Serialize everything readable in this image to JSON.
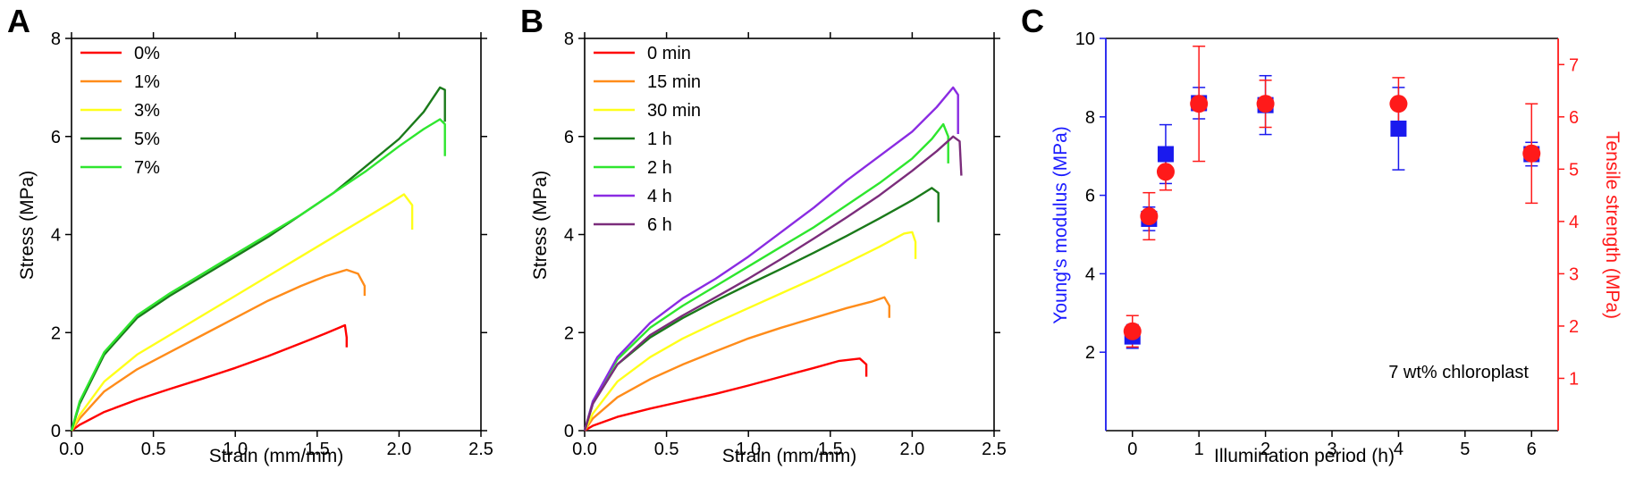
{
  "panels": [
    {
      "letter": "A",
      "chart_data": {
        "type": "line",
        "xlabel": "Strain (mm/mm)",
        "ylabel": "Stress (MPa)",
        "xlim": [
          0,
          2.5
        ],
        "ylim": [
          0,
          8
        ],
        "xticks": [
          "0.0",
          "0.5",
          "1.0",
          "1.5",
          "2.0",
          "2.5"
        ],
        "yticks": [
          "0",
          "2",
          "4",
          "6",
          "8"
        ],
        "legend_position": "top-left",
        "series": [
          {
            "name": "0%",
            "color": "#ff0000",
            "x": [
              0,
              0.05,
              0.2,
              0.4,
              0.6,
              0.8,
              1.0,
              1.2,
              1.4,
              1.55,
              1.67,
              1.68,
              1.68
            ],
            "y": [
              0,
              0.12,
              0.38,
              0.63,
              0.85,
              1.06,
              1.28,
              1.52,
              1.78,
              1.98,
              2.15,
              1.9,
              1.7
            ]
          },
          {
            "name": "1%",
            "color": "#ff8c1a",
            "x": [
              0,
              0.05,
              0.2,
              0.4,
              0.6,
              0.8,
              1.0,
              1.2,
              1.4,
              1.55,
              1.68,
              1.75,
              1.79,
              1.79
            ],
            "y": [
              0,
              0.25,
              0.8,
              1.25,
              1.6,
              1.95,
              2.3,
              2.65,
              2.95,
              3.15,
              3.28,
              3.2,
              2.95,
              2.75
            ]
          },
          {
            "name": "3%",
            "color": "#ffff1a",
            "x": [
              0,
              0.05,
              0.2,
              0.4,
              0.6,
              0.8,
              1.0,
              1.2,
              1.4,
              1.6,
              1.8,
              1.95,
              2.03,
              2.08,
              2.08
            ],
            "y": [
              0,
              0.32,
              1.0,
              1.55,
              1.95,
              2.35,
              2.75,
              3.15,
              3.55,
              3.95,
              4.35,
              4.65,
              4.82,
              4.6,
              4.1
            ]
          },
          {
            "name": "5%",
            "color": "#1a7a1a",
            "x": [
              0,
              0.05,
              0.2,
              0.4,
              0.6,
              0.8,
              1.0,
              1.2,
              1.4,
              1.6,
              1.8,
              2.0,
              2.15,
              2.25,
              2.28,
              2.28
            ],
            "y": [
              0,
              0.55,
              1.55,
              2.3,
              2.75,
              3.15,
              3.55,
              3.95,
              4.4,
              4.85,
              5.4,
              5.95,
              6.5,
              7.0,
              6.95,
              6.3
            ]
          },
          {
            "name": "7%",
            "color": "#2ee62e",
            "x": [
              0,
              0.05,
              0.2,
              0.4,
              0.6,
              0.8,
              1.0,
              1.2,
              1.4,
              1.6,
              1.8,
              2.0,
              2.15,
              2.25,
              2.28,
              2.28
            ],
            "y": [
              0,
              0.6,
              1.6,
              2.35,
              2.8,
              3.2,
              3.6,
              4.0,
              4.4,
              4.85,
              5.3,
              5.8,
              6.15,
              6.35,
              6.25,
              5.6
            ]
          }
        ]
      }
    },
    {
      "letter": "B",
      "chart_data": {
        "type": "line",
        "xlabel": "Strain (mm/mm)",
        "ylabel": "Stress (MPa)",
        "xlim": [
          0,
          2.5
        ],
        "ylim": [
          0,
          8
        ],
        "xticks": [
          "0.0",
          "0.5",
          "1.0",
          "1.5",
          "2.0",
          "2.5"
        ],
        "yticks": [
          "0",
          "2",
          "4",
          "6",
          "8"
        ],
        "legend_position": "top-left",
        "series": [
          {
            "name": "0 min",
            "color": "#ff0000",
            "x": [
              0,
              0.05,
              0.2,
              0.4,
              0.6,
              0.8,
              1.0,
              1.2,
              1.4,
              1.55,
              1.68,
              1.72,
              1.72
            ],
            "y": [
              0,
              0.1,
              0.28,
              0.45,
              0.6,
              0.75,
              0.92,
              1.1,
              1.28,
              1.42,
              1.47,
              1.35,
              1.1
            ]
          },
          {
            "name": "15 min",
            "color": "#ff8c1a",
            "x": [
              0,
              0.05,
              0.2,
              0.4,
              0.6,
              0.8,
              1.0,
              1.2,
              1.4,
              1.6,
              1.75,
              1.83,
              1.86,
              1.86
            ],
            "y": [
              0,
              0.25,
              0.68,
              1.05,
              1.35,
              1.62,
              1.88,
              2.1,
              2.3,
              2.5,
              2.63,
              2.72,
              2.55,
              2.3
            ]
          },
          {
            "name": "30 min",
            "color": "#ffff1a",
            "x": [
              0,
              0.05,
              0.2,
              0.4,
              0.6,
              0.8,
              1.0,
              1.2,
              1.4,
              1.6,
              1.8,
              1.95,
              2.0,
              2.02,
              2.02
            ],
            "y": [
              0,
              0.35,
              1.0,
              1.5,
              1.88,
              2.2,
              2.5,
              2.8,
              3.1,
              3.42,
              3.75,
              4.02,
              4.05,
              3.85,
              3.5
            ]
          },
          {
            "name": "1 h",
            "color": "#1a7a1a",
            "x": [
              0,
              0.05,
              0.2,
              0.4,
              0.6,
              0.8,
              1.0,
              1.2,
              1.4,
              1.6,
              1.8,
              2.0,
              2.12,
              2.16,
              2.16
            ],
            "y": [
              0,
              0.55,
              1.35,
              1.9,
              2.3,
              2.65,
              2.98,
              3.3,
              3.63,
              3.97,
              4.33,
              4.7,
              4.95,
              4.85,
              4.25
            ]
          },
          {
            "name": "2 h",
            "color": "#2ee62e",
            "x": [
              0,
              0.05,
              0.2,
              0.4,
              0.6,
              0.8,
              1.0,
              1.2,
              1.4,
              1.6,
              1.8,
              2.0,
              2.12,
              2.19,
              2.22,
              2.22
            ],
            "y": [
              0,
              0.6,
              1.45,
              2.1,
              2.55,
              2.95,
              3.35,
              3.75,
              4.15,
              4.6,
              5.05,
              5.55,
              5.95,
              6.25,
              6.0,
              5.45
            ]
          },
          {
            "name": "4 h",
            "color": "#8a2be2",
            "x": [
              0,
              0.05,
              0.2,
              0.4,
              0.6,
              0.8,
              1.0,
              1.2,
              1.4,
              1.6,
              1.8,
              2.0,
              2.15,
              2.25,
              2.28,
              2.28
            ],
            "y": [
              0,
              0.6,
              1.5,
              2.2,
              2.7,
              3.1,
              3.55,
              4.05,
              4.55,
              5.1,
              5.6,
              6.1,
              6.6,
              7.0,
              6.85,
              6.05
            ]
          },
          {
            "name": "6 h",
            "color": "#7b2d7b",
            "x": [
              0,
              0.05,
              0.2,
              0.4,
              0.6,
              0.8,
              1.0,
              1.2,
              1.4,
              1.6,
              1.8,
              2.0,
              2.15,
              2.25,
              2.29,
              2.3
            ],
            "y": [
              0,
              0.55,
              1.35,
              1.95,
              2.35,
              2.72,
              3.1,
              3.5,
              3.92,
              4.35,
              4.8,
              5.3,
              5.7,
              6.0,
              5.9,
              5.2
            ]
          }
        ]
      }
    },
    {
      "letter": "C",
      "chart_data": {
        "type": "scatter",
        "xlabel": "Illumination period (h)",
        "ylabel": "Young's modulus (MPa)",
        "y2label": "Tensile strength (MPa)",
        "annotation": "7 wt% chloroplast",
        "xlim": [
          -0.4,
          6.4
        ],
        "ylim": [
          0,
          10
        ],
        "y2lim": [
          0,
          7.5
        ],
        "xticks": [
          "0",
          "1",
          "2",
          "3",
          "4",
          "5",
          "6"
        ],
        "yticks": [
          "2",
          "4",
          "6",
          "8",
          "10"
        ],
        "y2ticks": [
          "1",
          "2",
          "3",
          "4",
          "5",
          "6",
          "7"
        ],
        "ylabel_color": "#1a1aff",
        "y2label_color": "#ff1a1a",
        "series": [
          {
            "name": "Young's modulus",
            "axis": "left",
            "marker": "square",
            "color": "#1a1aee",
            "x": [
              0,
              0.25,
              0.5,
              1,
              2,
              4,
              6
            ],
            "y": [
              2.4,
              5.4,
              7.05,
              8.35,
              8.3,
              7.7,
              7.05
            ],
            "err": [
              0.3,
              0.3,
              0.75,
              0.4,
              0.75,
              1.05,
              0.3
            ]
          },
          {
            "name": "Tensile strength",
            "axis": "right",
            "marker": "circle",
            "color": "#ff1a1a",
            "x": [
              0,
              0.25,
              0.5,
              1,
              2,
              4,
              6
            ],
            "y": [
              1.9,
              4.1,
              4.95,
              6.25,
              6.25,
              6.25,
              5.3
            ],
            "err": [
              0.3,
              0.45,
              0.35,
              1.1,
              0.45,
              0.5,
              0.95
            ]
          }
        ]
      }
    }
  ]
}
